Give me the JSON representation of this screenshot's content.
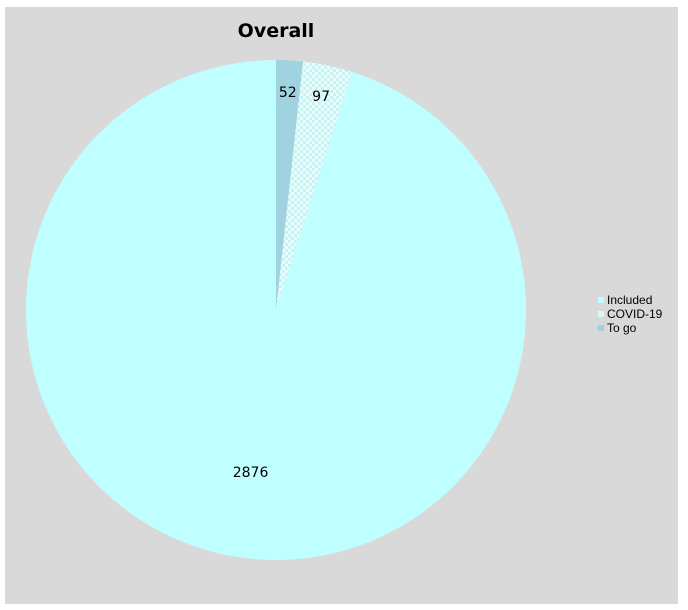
{
  "chart_data": {
    "type": "pie",
    "title": "Overall",
    "slices": [
      {
        "label": "Included",
        "value": 2876,
        "color": "#bfffff",
        "pattern": "solid"
      },
      {
        "label": "COVID-19",
        "value": 97,
        "color": "#dcfafa",
        "pattern": "checkered"
      },
      {
        "label": "To go",
        "value": 52,
        "color": "#9fd3df",
        "pattern": "solid"
      }
    ],
    "data_labels": [
      "2876",
      "97",
      "52"
    ],
    "legend_position": "right",
    "start_angle": "12 o'clock",
    "direction": "counterclockwise"
  }
}
